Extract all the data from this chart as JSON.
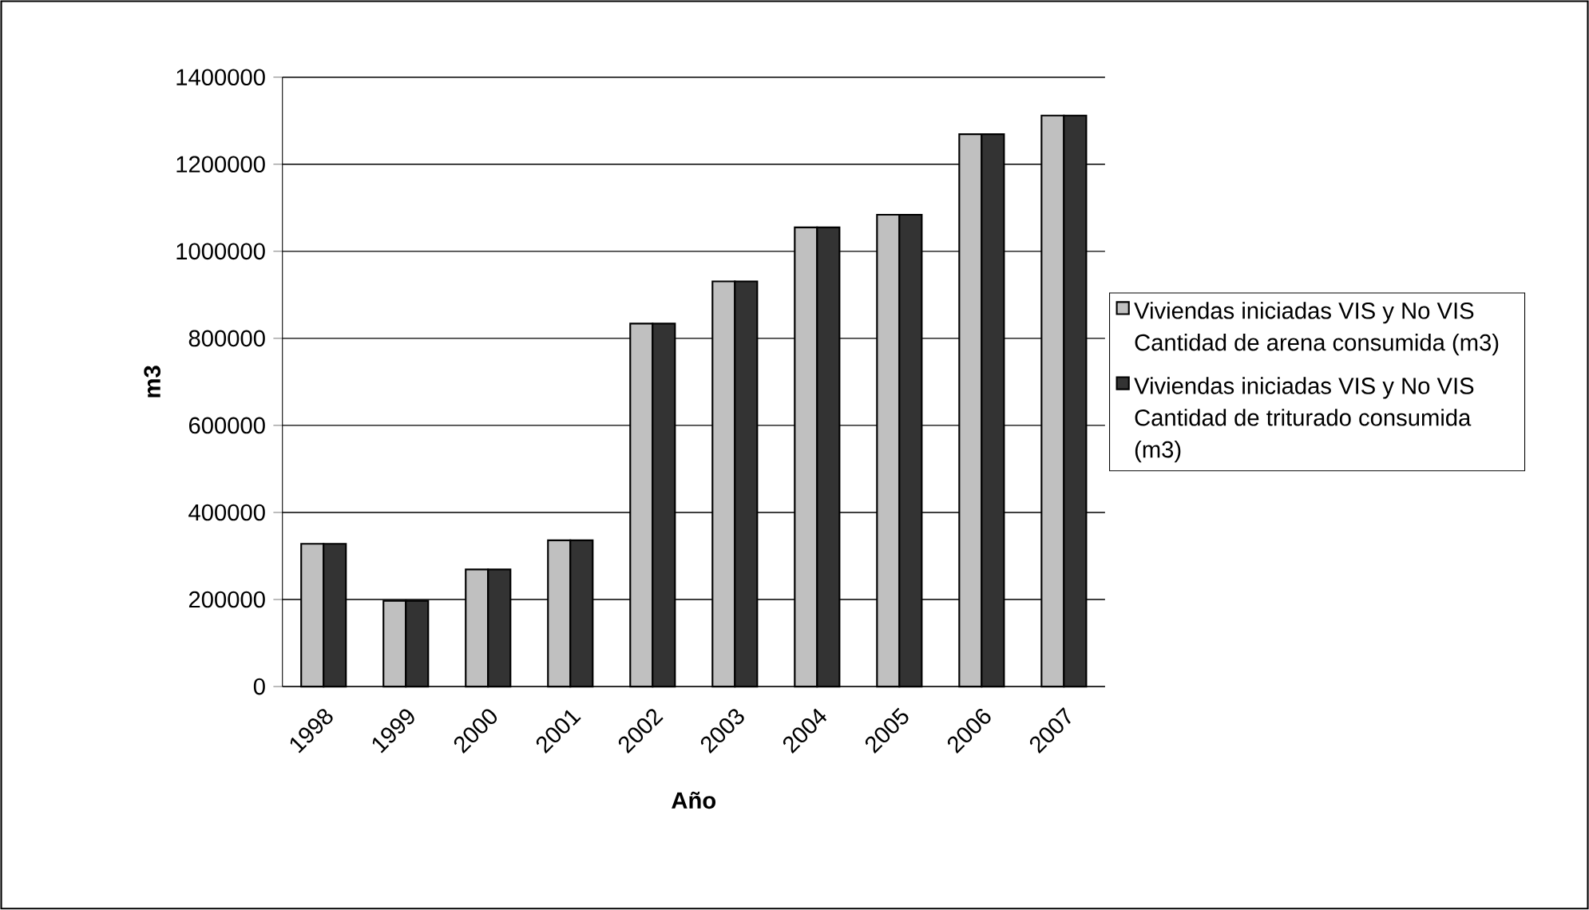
{
  "chart_data": {
    "type": "bar",
    "xlabel": "Año",
    "ylabel": "m3",
    "categories": [
      "1998",
      "1999",
      "2000",
      "2001",
      "2002",
      "2003",
      "2004",
      "2005",
      "2006",
      "2007"
    ],
    "series": [
      {
        "name": "Viviendas iniciadas VIS y No VIS Cantidad de arena consumida (m3)",
        "color": "#c0c0c0",
        "values": [
          328000,
          197000,
          269000,
          336000,
          834000,
          931000,
          1055000,
          1084000,
          1269000,
          1312000
        ]
      },
      {
        "name": "Viviendas iniciadas VIS y No VIS Cantidad de triturado consumida (m3)",
        "color": "#333333",
        "values": [
          328000,
          197000,
          269000,
          336000,
          834000,
          931000,
          1055000,
          1084000,
          1269000,
          1312000
        ]
      }
    ],
    "ylim": [
      0,
      1400000
    ],
    "yticks": [
      0,
      200000,
      400000,
      600000,
      800000,
      1000000,
      1200000,
      1400000
    ],
    "grid": "y",
    "legend": "right"
  }
}
